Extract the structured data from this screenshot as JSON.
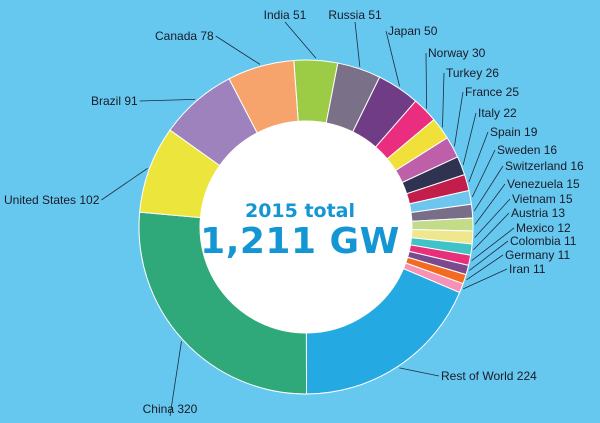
{
  "chart_data": {
    "type": "pie",
    "donut": true,
    "center_label": {
      "line1": "2015 total",
      "line2": "1,211 GW"
    },
    "slices": [
      {
        "label": "India 51",
        "name": "India",
        "value": 51,
        "color": "#9ccb45"
      },
      {
        "label": "Russia 51",
        "name": "Russia",
        "value": 51,
        "color": "#7a7087"
      },
      {
        "label": "Japan 50",
        "name": "Japan",
        "value": 50,
        "color": "#703c85"
      },
      {
        "label": "Norway 30",
        "name": "Norway",
        "value": 30,
        "color": "#ea2d7f"
      },
      {
        "label": "Turkey 26",
        "name": "Turkey",
        "value": 26,
        "color": "#f1df3a"
      },
      {
        "label": "France 25",
        "name": "France",
        "value": 25,
        "color": "#c05fa9"
      },
      {
        "label": "Italy 22",
        "name": "Italy",
        "value": 22,
        "color": "#2f3251"
      },
      {
        "label": "Spain 19",
        "name": "Spain",
        "value": 19,
        "color": "#c31d4b"
      },
      {
        "label": "Sweden 16",
        "name": "Sweden",
        "value": 16,
        "color": "#6ec5ee"
      },
      {
        "label": "Switzerland 16",
        "name": "Switzerland",
        "value": 16,
        "color": "#786e8a"
      },
      {
        "label": "Venezuela 15",
        "name": "Venezuela",
        "value": 15,
        "color": "#c3dc8a"
      },
      {
        "label": "Vietnam 15",
        "name": "Vietnam",
        "value": 15,
        "color": "#efe78e"
      },
      {
        "label": "Austria 13",
        "name": "Austria",
        "value": 13,
        "color": "#3fc3c6"
      },
      {
        "label": "Mexico 12",
        "name": "Mexico",
        "value": 12,
        "color": "#e8307a"
      },
      {
        "label": "Colombia 11",
        "name": "Colombia",
        "value": 11,
        "color": "#7a4a8e"
      },
      {
        "label": "Germany 11",
        "name": "Germany",
        "value": 11,
        "color": "#f26b21"
      },
      {
        "label": "Iran 11",
        "name": "Iran",
        "value": 11,
        "color": "#f592b6"
      },
      {
        "label": "Rest of World 224",
        "name": "Rest of World",
        "value": 224,
        "color": "#25a9e2"
      },
      {
        "label": "China 320",
        "name": "China",
        "value": 320,
        "color": "#2fa87a"
      },
      {
        "label": "United States 102",
        "name": "United States",
        "value": 102,
        "color": "#ece53c"
      },
      {
        "label": "Brazil 91",
        "name": "Brazil",
        "value": 91,
        "color": "#9d82bd"
      },
      {
        "label": "Canada 78",
        "name": "Canada",
        "value": 78,
        "color": "#f7a46c"
      }
    ]
  }
}
